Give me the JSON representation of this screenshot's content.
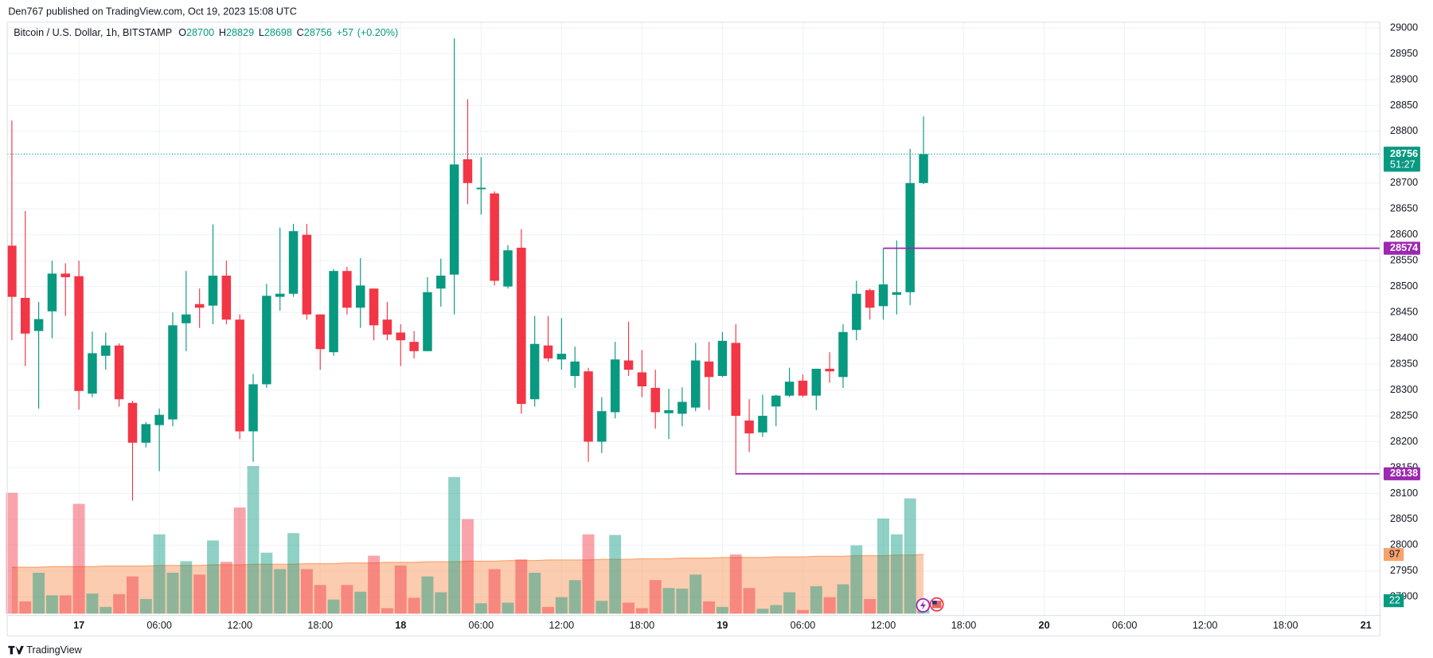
{
  "header": {
    "text": "Den767 published on TradingView.com, Oct 19, 2023 15:08 UTC"
  },
  "footer": {
    "brand": "TradingView"
  },
  "chart_data": {
    "type": "candlestick",
    "title": "Bitcoin / U.S. Dollar, 1h, BITSTAMP",
    "legend_fields": [
      {
        "label": "O",
        "value": 28700
      },
      {
        "label": "H",
        "value": 28829
      },
      {
        "label": "L",
        "value": 28698
      },
      {
        "label": "C",
        "value": 28756
      }
    ],
    "change": 57,
    "change_label": "+57",
    "change_pct": 0.2,
    "change_pct_label": "(+0.20%)",
    "up_color": "#089981",
    "down_color": "#f23645",
    "x": [
      0,
      1,
      2,
      3,
      4,
      5,
      6,
      7,
      8,
      9,
      10,
      11,
      12,
      13,
      14,
      15,
      16,
      17,
      18,
      19,
      20,
      21,
      22,
      23,
      24,
      25,
      26,
      27,
      28,
      29,
      30,
      31,
      32,
      33,
      34,
      35,
      36,
      37,
      38,
      39,
      40,
      41,
      42,
      43,
      44,
      45,
      46,
      47,
      48,
      49,
      50,
      51,
      52,
      53,
      54,
      55,
      56,
      57,
      58,
      59,
      60,
      61,
      62,
      63,
      64,
      65,
      66,
      67,
      68
    ],
    "open": [
      28579,
      28478,
      28414,
      28452,
      28525,
      28520,
      28293,
      28366,
      28386,
      28275,
      28198,
      28232,
      28243,
      28429,
      28466,
      28463,
      28521,
      28436,
      28220,
      28311,
      28480,
      28486,
      28600,
      28446,
      28373,
      28530,
      28459,
      28496,
      28436,
      28411,
      28393,
      28375,
      28496,
      28523,
      28746,
      28688,
      28680,
      28500,
      28575,
      28282,
      28386,
      28359,
      28327,
      28336,
      28200,
      28257,
      28357,
      28334,
      28304,
      28255,
      28254,
      28266,
      28355,
      28327,
      28391,
      28241,
      28218,
      28268,
      28289,
      28318,
      28289,
      28341,
      28325,
      28416,
      28493,
      28462,
      28484,
      28489,
      28700
    ],
    "high": [
      28821,
      28646,
      28470,
      28550,
      28545,
      28550,
      28413,
      28411,
      28390,
      28279,
      28238,
      28264,
      28450,
      28530,
      28496,
      28620,
      28550,
      28446,
      28331,
      28505,
      28614,
      28621,
      28621,
      28446,
      28534,
      28538,
      28555,
      28496,
      28470,
      28427,
      28414,
      28518,
      28554,
      28980,
      28862,
      28750,
      28684,
      28580,
      28611,
      28443,
      28443,
      28439,
      28384,
      28343,
      28286,
      28393,
      28432,
      28377,
      28339,
      28302,
      28305,
      28391,
      28393,
      28412,
      28427,
      28282,
      28291,
      28291,
      28343,
      28330,
      28341,
      28373,
      28427,
      28511,
      28496,
      28574,
      28589,
      28766,
      28829
    ],
    "low": [
      28396,
      28346,
      28264,
      28400,
      28443,
      28262,
      28286,
      28339,
      28268,
      28086,
      28189,
      28143,
      28230,
      28375,
      28420,
      28427,
      28427,
      28205,
      28161,
      28304,
      28453,
      28480,
      28436,
      28339,
      28366,
      28446,
      28420,
      28396,
      28396,
      28346,
      28361,
      28375,
      28461,
      28446,
      28659,
      28639,
      28502,
      28496,
      28254,
      28268,
      28355,
      28339,
      28304,
      28161,
      28178,
      28245,
      28327,
      28286,
      28225,
      28205,
      28230,
      28259,
      28261,
      28325,
      28136,
      28180,
      28209,
      28230,
      28286,
      28286,
      28261,
      28314,
      28304,
      28396,
      28436,
      28436,
      28446,
      28464,
      28698
    ],
    "close": [
      28480,
      28409,
      28437,
      28525,
      28518,
      28298,
      28371,
      28386,
      28282,
      28198,
      28234,
      28252,
      28425,
      28446,
      28459,
      28521,
      28436,
      28220,
      28311,
      28482,
      28486,
      28607,
      28446,
      28379,
      28530,
      28459,
      28502,
      28425,
      28407,
      28396,
      28375,
      28489,
      28521,
      28736,
      28700,
      28691,
      28511,
      28570,
      28273,
      28389,
      28361,
      28370,
      28355,
      28200,
      28259,
      28359,
      28339,
      28307,
      28257,
      28261,
      28277,
      28357,
      28325,
      28395,
      28250,
      28216,
      28250,
      28289,
      28316,
      28289,
      28341,
      28336,
      28412,
      28486,
      28459,
      28504,
      28489,
      28700,
      28756
    ],
    "volume": [
      198,
      20,
      67,
      30,
      30,
      180,
      33,
      11,
      32,
      61,
      24,
      130,
      67,
      86,
      64,
      120,
      85,
      174,
      242,
      100,
      73,
      132,
      73,
      47,
      23,
      47,
      36,
      95,
      9,
      79,
      26,
      61,
      35,
      224,
      155,
      17,
      73,
      18,
      89,
      67,
      11,
      27,
      55,
      130,
      21,
      129,
      18,
      9,
      55,
      42,
      41,
      64,
      20,
      11,
      97,
      42,
      8,
      14,
      35,
      6,
      45,
      27,
      48,
      112,
      24,
      156,
      130,
      189,
      22
    ],
    "volume_ma": [
      76,
      76,
      76,
      77,
      77,
      77,
      77,
      78,
      78,
      78,
      78,
      79,
      79,
      79,
      79,
      80,
      80,
      80,
      81,
      81,
      81,
      81,
      82,
      82,
      82,
      83,
      83,
      83,
      84,
      84,
      84,
      85,
      85,
      85,
      86,
      86,
      86,
      87,
      87,
      87,
      88,
      88,
      88,
      88,
      89,
      89,
      89,
      90,
      90,
      90,
      91,
      91,
      91,
      92,
      92,
      92,
      92,
      93,
      93,
      93,
      94,
      94,
      94,
      95,
      95,
      95,
      96,
      96,
      97
    ],
    "volume_ma_color": "#f7a26d",
    "volume_lim": [
      0,
      250
    ],
    "countdown": "51:27",
    "price_lines": [
      {
        "price": 28574,
        "start_x": 65,
        "color": "#9c27b0"
      },
      {
        "price": 28138,
        "start_x": 54,
        "color": "#9c27b0"
      }
    ],
    "xlim": [
      -0.34,
      102.05
    ],
    "xticks": [
      {
        "value": 5,
        "label": "17"
      },
      {
        "value": 11,
        "label": "06:00"
      },
      {
        "value": 17,
        "label": "12:00"
      },
      {
        "value": 23,
        "label": "18:00"
      },
      {
        "value": 29,
        "label": "18"
      },
      {
        "value": 35,
        "label": "06:00"
      },
      {
        "value": 41,
        "label": "12:00"
      },
      {
        "value": 47,
        "label": "18:00"
      },
      {
        "value": 53,
        "label": "19"
      },
      {
        "value": 59,
        "label": "06:00"
      },
      {
        "value": 65,
        "label": "12:00"
      },
      {
        "value": 71,
        "label": "18:00"
      },
      {
        "value": 77,
        "label": "20"
      },
      {
        "value": 83,
        "label": "06:00"
      },
      {
        "value": 89,
        "label": "12:00"
      },
      {
        "value": 95,
        "label": "18:00"
      },
      {
        "value": 101,
        "label": "21"
      }
    ],
    "ylim": [
      27864,
      29011
    ],
    "yticks": [
      27900,
      27950,
      28000,
      28050,
      28100,
      28150,
      28200,
      28250,
      28300,
      28350,
      28400,
      28450,
      28500,
      28550,
      28600,
      28650,
      28700,
      28750,
      28800,
      28850,
      28900,
      28950,
      29000
    ],
    "grid": true
  }
}
